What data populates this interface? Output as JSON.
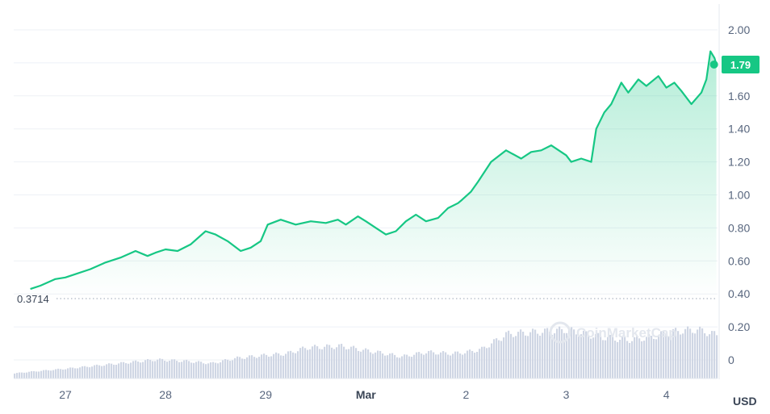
{
  "chart_data": {
    "type": "area",
    "title": "",
    "xlabel": "",
    "ylabel": "",
    "unit_label": "USD",
    "ylim": [
      0,
      2.0
    ],
    "y_ticks": [
      "2.00",
      "1.80",
      "1.60",
      "1.40",
      "1.20",
      "1.00",
      "0.80",
      "0.60",
      "0.40",
      "0.20",
      "0"
    ],
    "y_tick_values": [
      2.0,
      1.8,
      1.6,
      1.4,
      1.2,
      1.0,
      0.8,
      0.6,
      0.4,
      0.2,
      0
    ],
    "x_ticks": [
      "27",
      "28",
      "29",
      "Mar",
      "2",
      "3",
      "4"
    ],
    "x_tick_days": [
      1,
      2,
      3,
      4,
      5,
      6,
      7
    ],
    "x_range_days": [
      0.35,
      7.52
    ],
    "opening_price": 0.3714,
    "opening_price_label": "0.3714",
    "current_price": 1.79,
    "current_price_label": "1.79",
    "line_color": "#16c784",
    "volume_color": "#cfd6e4",
    "watermark": "CoinMarketCap",
    "price_series": {
      "day": [
        0.65,
        0.75,
        0.9,
        1.0,
        1.1,
        1.25,
        1.4,
        1.55,
        1.7,
        1.82,
        1.9,
        2.0,
        2.12,
        2.25,
        2.4,
        2.5,
        2.62,
        2.75,
        2.85,
        2.95,
        3.02,
        3.15,
        3.3,
        3.45,
        3.6,
        3.72,
        3.8,
        3.92,
        4.0,
        4.1,
        4.2,
        4.3,
        4.4,
        4.5,
        4.6,
        4.72,
        4.82,
        4.92,
        4.96,
        5.05,
        5.12,
        5.25,
        5.4,
        5.55,
        5.65,
        5.75,
        5.85,
        5.95,
        6.0,
        6.05,
        6.15,
        6.25,
        6.3,
        6.38,
        6.45,
        6.55,
        6.62,
        6.72,
        6.8,
        6.92,
        7.0,
        7.08,
        7.15,
        7.25,
        7.35,
        7.4,
        7.44,
        7.48,
        7.5
      ],
      "price": [
        0.43,
        0.45,
        0.49,
        0.5,
        0.52,
        0.55,
        0.59,
        0.62,
        0.66,
        0.63,
        0.65,
        0.67,
        0.66,
        0.7,
        0.78,
        0.76,
        0.72,
        0.66,
        0.68,
        0.72,
        0.82,
        0.85,
        0.82,
        0.84,
        0.83,
        0.85,
        0.82,
        0.87,
        0.84,
        0.8,
        0.76,
        0.78,
        0.84,
        0.88,
        0.84,
        0.86,
        0.92,
        0.95,
        0.97,
        1.02,
        1.08,
        1.2,
        1.27,
        1.22,
        1.26,
        1.27,
        1.3,
        1.26,
        1.24,
        1.2,
        1.22,
        1.2,
        1.4,
        1.5,
        1.55,
        1.68,
        1.62,
        1.7,
        1.66,
        1.72,
        1.65,
        1.68,
        1.63,
        1.55,
        1.62,
        1.7,
        1.87,
        1.83,
        1.79
      ]
    },
    "volume_series": {
      "day": [
        0.35,
        0.65,
        1.0,
        1.3,
        1.6,
        1.9,
        2.2,
        2.45,
        2.7,
        3.0,
        3.2,
        3.4,
        3.75,
        4.0,
        4.1,
        4.35,
        4.6,
        4.85,
        5.0,
        5.15,
        5.4,
        5.6,
        5.85,
        6.0,
        6.1,
        6.35,
        6.6,
        6.85,
        7.0,
        7.1,
        7.3,
        7.52
      ],
      "volume": [
        0.02,
        0.04,
        0.06,
        0.08,
        0.1,
        0.12,
        0.11,
        0.095,
        0.13,
        0.15,
        0.16,
        0.2,
        0.21,
        0.18,
        0.17,
        0.14,
        0.17,
        0.16,
        0.17,
        0.19,
        0.29,
        0.3,
        0.31,
        0.32,
        0.3,
        0.27,
        0.25,
        0.27,
        0.3,
        0.31,
        0.32,
        0.28
      ]
    }
  }
}
